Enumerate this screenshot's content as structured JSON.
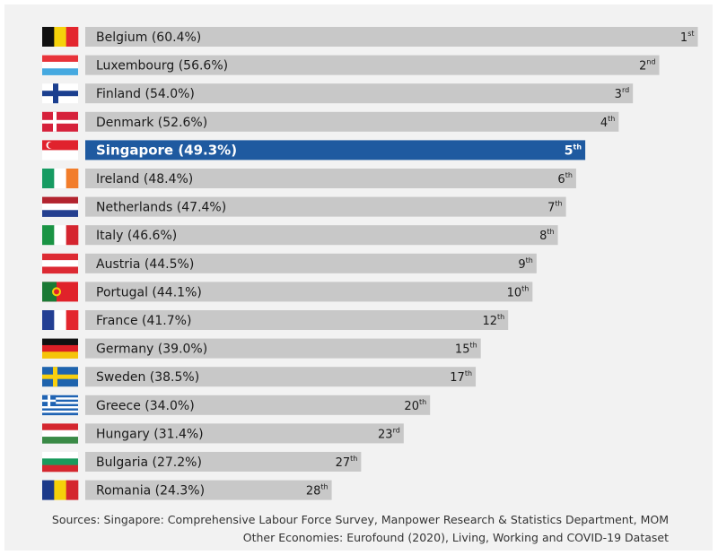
{
  "chart_data": {
    "type": "bar",
    "orientation": "horizontal",
    "title": "",
    "xlabel": "",
    "ylabel": "",
    "xlim": [
      0,
      61
    ],
    "highlight": "Singapore",
    "colors": {
      "bar": "#c8c8c8",
      "highlight": "#1f5aa0",
      "frame": "#f2f2f2"
    },
    "items": [
      {
        "country": "Belgium",
        "label": "Belgium (60.4%)",
        "value": 60.4,
        "rank": "1",
        "suffix": "st",
        "flag": "belgium-flag"
      },
      {
        "country": "Luxembourg",
        "label": "Luxembourg (56.6%)",
        "value": 56.6,
        "rank": "2",
        "suffix": "nd",
        "flag": "luxembourg-flag"
      },
      {
        "country": "Finland",
        "label": "Finland (54.0%)",
        "value": 54.0,
        "rank": "3",
        "suffix": "rd",
        "flag": "finland-flag"
      },
      {
        "country": "Denmark",
        "label": "Denmark (52.6%)",
        "value": 52.6,
        "rank": "4",
        "suffix": "th",
        "flag": "denmark-flag"
      },
      {
        "country": "Singapore",
        "label": "Singapore (49.3%)",
        "value": 49.3,
        "rank": "5",
        "suffix": "th",
        "flag": "singapore-flag"
      },
      {
        "country": "Ireland",
        "label": "Ireland (48.4%)",
        "value": 48.4,
        "rank": "6",
        "suffix": "th",
        "flag": "ireland-flag"
      },
      {
        "country": "Netherlands",
        "label": "Netherlands (47.4%)",
        "value": 47.4,
        "rank": "7",
        "suffix": "th",
        "flag": "netherlands-flag"
      },
      {
        "country": "Italy",
        "label": "Italy (46.6%)",
        "value": 46.6,
        "rank": "8",
        "suffix": "th",
        "flag": "italy-flag"
      },
      {
        "country": "Austria",
        "label": "Austria (44.5%)",
        "value": 44.5,
        "rank": "9",
        "suffix": "th",
        "flag": "austria-flag"
      },
      {
        "country": "Portugal",
        "label": "Portugal (44.1%)",
        "value": 44.1,
        "rank": "10",
        "suffix": "th",
        "flag": "portugal-flag"
      },
      {
        "country": "France",
        "label": "France (41.7%)",
        "value": 41.7,
        "rank": "12",
        "suffix": "th",
        "flag": "france-flag"
      },
      {
        "country": "Germany",
        "label": "Germany (39.0%)",
        "value": 39.0,
        "rank": "15",
        "suffix": "th",
        "flag": "germany-flag"
      },
      {
        "country": "Sweden",
        "label": "Sweden (38.5%)",
        "value": 38.5,
        "rank": "17",
        "suffix": "th",
        "flag": "sweden-flag"
      },
      {
        "country": "Greece",
        "label": "Greece (34.0%)",
        "value": 34.0,
        "rank": "20",
        "suffix": "th",
        "flag": "greece-flag"
      },
      {
        "country": "Hungary",
        "label": "Hungary (31.4%)",
        "value": 31.4,
        "rank": "23",
        "suffix": "rd",
        "flag": "hungary-flag"
      },
      {
        "country": "Bulgaria",
        "label": "Bulgaria (27.2%)",
        "value": 27.2,
        "rank": "27",
        "suffix": "th",
        "flag": "bulgaria-flag"
      },
      {
        "country": "Romania",
        "label": "Romania (24.3%)",
        "value": 24.3,
        "rank": "28",
        "suffix": "th",
        "flag": "romania-flag"
      }
    ]
  },
  "sources": {
    "line1": "Sources: Singapore: Comprehensive Labour Force Survey, Manpower Research & Statistics Department, MOM",
    "line2": "Other Economies: Eurofound (2020), Living, Working and COVID-19 Dataset"
  }
}
